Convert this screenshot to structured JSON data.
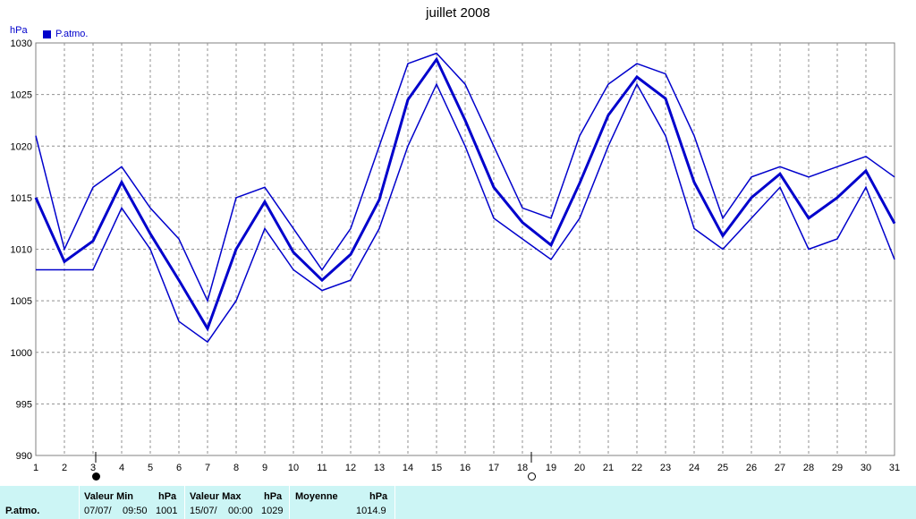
{
  "chart_data": {
    "type": "line",
    "title": "juillet 2008",
    "ylabel": "hPa",
    "ylim": [
      990,
      1030
    ],
    "yticks": [
      990,
      995,
      1000,
      1005,
      1010,
      1015,
      1020,
      1025,
      1030
    ],
    "x": [
      1,
      2,
      3,
      4,
      5,
      6,
      7,
      8,
      9,
      10,
      11,
      12,
      13,
      14,
      15,
      16,
      17,
      18,
      19,
      20,
      21,
      22,
      23,
      24,
      25,
      26,
      27,
      28,
      29,
      30,
      31
    ],
    "grid": true,
    "legend": "top-left",
    "series": [
      {
        "name": "P.atmo.",
        "role": "max",
        "values": [
          1021,
          1010,
          1016,
          1018,
          1014,
          1011,
          1005,
          1015,
          1016,
          1012,
          1008,
          1012,
          1020,
          1028,
          1029,
          1026,
          1020,
          1014,
          1013,
          1021,
          1026,
          1028,
          1027,
          1021,
          1013,
          1017,
          1018,
          1017,
          1018,
          1019,
          1017
        ]
      },
      {
        "name": "P.atmo.",
        "role": "mean",
        "values": [
          1015,
          1008.8,
          1010.8,
          1016.5,
          1011.5,
          1007,
          1002.3,
          1010,
          1014.6,
          1009.7,
          1007,
          1009.5,
          1014.8,
          1024.5,
          1028.4,
          1022.5,
          1016,
          1012.6,
          1010.4,
          1016.4,
          1023,
          1026.7,
          1024.6,
          1016.5,
          1011.3,
          1015,
          1017.3,
          1013,
          1015,
          1017.6,
          1012.5
        ]
      },
      {
        "name": "P.atmo.",
        "role": "min",
        "values": [
          1008,
          1008,
          1008,
          1014,
          1010,
          1003,
          1001,
          1005,
          1012,
          1008,
          1006,
          1007,
          1012,
          1020,
          1026,
          1020,
          1013,
          1011,
          1009,
          1013,
          1020,
          1026,
          1021,
          1012,
          1010,
          1013,
          1016,
          1010,
          1011,
          1016,
          1009
        ]
      }
    ],
    "moon_phases": [
      {
        "day": 3,
        "phase": "new"
      },
      {
        "day": 18,
        "phase": "full"
      }
    ],
    "color": "#0000cc"
  },
  "unit_label": "hPa",
  "legend_label": "P.atmo.",
  "footer": {
    "row_label": "P.atmo.",
    "min": {
      "header": "Valeur Min",
      "unit": "hPa",
      "date": "07/07/",
      "time": "09:50",
      "value": "1001"
    },
    "max": {
      "header": "Valeur Max",
      "unit": "hPa",
      "date": "15/07/",
      "time": "00:00",
      "value": "1029"
    },
    "mean": {
      "header": "Moyenne",
      "unit": "hPa",
      "value": "1014.9"
    }
  }
}
